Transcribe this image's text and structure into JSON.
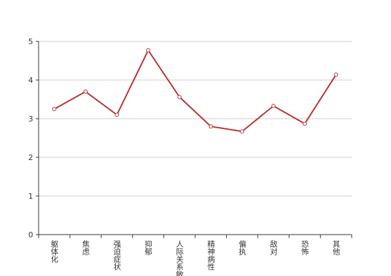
{
  "chart_data": {
    "type": "line",
    "categories": [
      "躯体化",
      "焦虑",
      "强迫症状",
      "抑郁",
      "人际关系敏感",
      "精神病性",
      "偏执",
      "敌对",
      "恐怖",
      "其他"
    ],
    "values": [
      3.25,
      3.7,
      3.1,
      4.77,
      3.56,
      2.8,
      2.67,
      3.33,
      2.87,
      4.14
    ],
    "color": "#b83232",
    "ylim": [
      0,
      5
    ],
    "yticks": [
      0,
      1,
      2,
      3,
      4,
      5
    ],
    "grid": true
  }
}
